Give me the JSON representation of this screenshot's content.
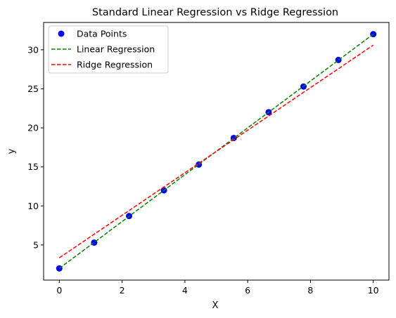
{
  "chart_data": {
    "type": "scatter",
    "title": "Standard Linear Regression vs Ridge Regression",
    "xlabel": "X",
    "ylabel": "y",
    "xlim": [
      -0.5,
      10.5
    ],
    "ylim": [
      0.5,
      33.5
    ],
    "xticks": [
      0,
      2,
      4,
      6,
      8,
      10
    ],
    "yticks": [
      5,
      10,
      15,
      20,
      25,
      30
    ],
    "grid": false,
    "legend_position": "top-left",
    "series": [
      {
        "name": "Data Points",
        "kind": "scatter",
        "color": "#0000ff",
        "x": [
          0,
          1.111,
          2.222,
          3.333,
          4.444,
          5.556,
          6.667,
          7.778,
          8.889,
          10
        ],
        "y": [
          2.0,
          5.3,
          8.7,
          12.0,
          15.3,
          18.7,
          22.0,
          25.3,
          28.7,
          32.0
        ]
      },
      {
        "name": "Linear Regression",
        "kind": "line",
        "style": "dashed",
        "color": "#008000",
        "x": [
          0,
          10
        ],
        "y": [
          2.0,
          32.0
        ]
      },
      {
        "name": "Ridge Regression",
        "kind": "line",
        "style": "dashed",
        "color": "#ff0000",
        "x": [
          0,
          10
        ],
        "y": [
          3.35,
          30.6
        ]
      }
    ]
  }
}
